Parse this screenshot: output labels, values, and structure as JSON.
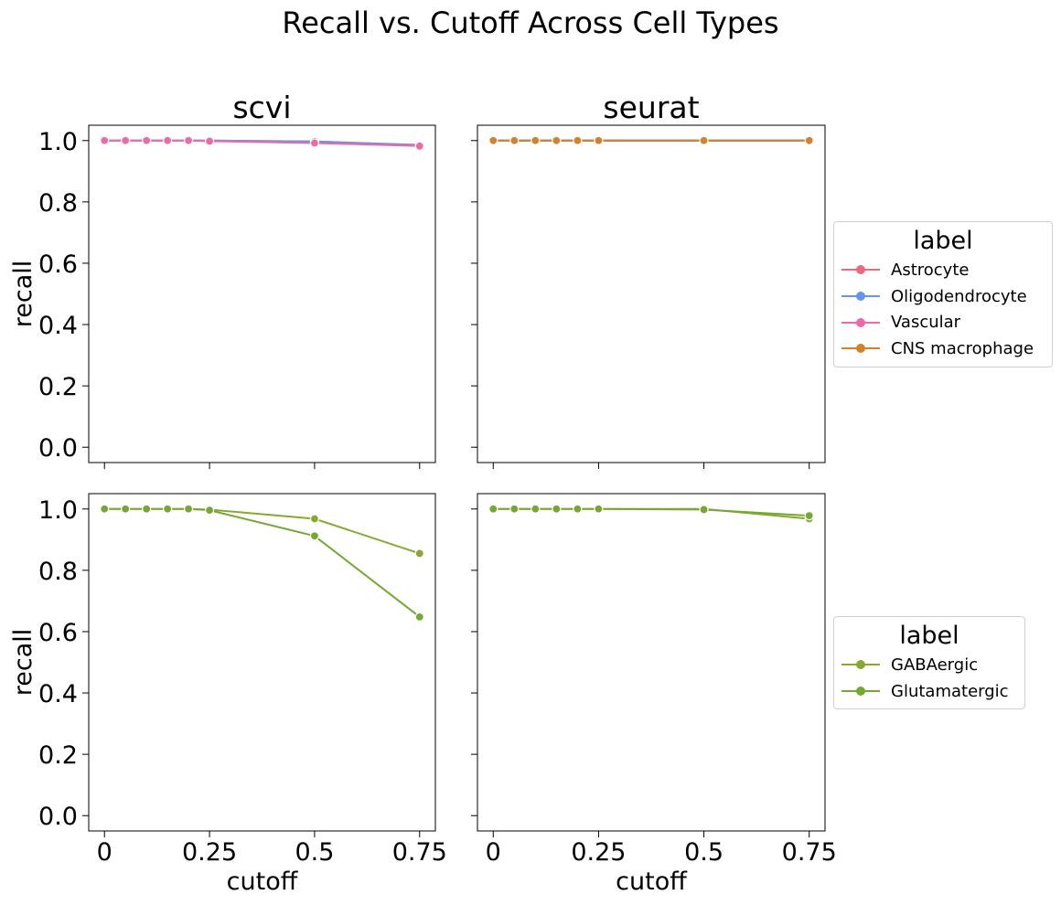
{
  "figure": {
    "title": "Recall vs. Cutoff Across Cell Types"
  },
  "chart_data": [
    {
      "type": "line",
      "title": "scvi",
      "xlabel": "",
      "ylabel": "recall",
      "xlim": [
        -0.0375,
        0.7875
      ],
      "ylim": [
        -0.05,
        1.05
      ],
      "xticks": [
        "0",
        "0.25",
        "0.5",
        "0.75"
      ],
      "yticks": [
        "0.0",
        "0.2",
        "0.4",
        "0.6",
        "0.8",
        "1.0"
      ],
      "x": [
        0,
        0.05,
        0.1,
        0.15,
        0.2,
        0.25,
        0.5,
        0.75
      ],
      "series": [
        {
          "name": "Astrocyte",
          "color": "#ee6680",
          "values": [
            1.0,
            1.0,
            1.0,
            1.0,
            1.0,
            1.0,
            0.997,
            0.986
          ]
        },
        {
          "name": "Oligodendrocyte",
          "color": "#6495ed",
          "values": [
            1.0,
            1.0,
            1.0,
            1.0,
            1.0,
            1.0,
            0.997,
            0.985
          ]
        },
        {
          "name": "Vascular",
          "color": "#ee6aa7",
          "values": [
            1.0,
            1.0,
            1.0,
            1.0,
            1.0,
            0.998,
            0.992,
            0.982
          ]
        }
      ]
    },
    {
      "type": "line",
      "title": "seurat",
      "xlabel": "",
      "ylabel": "",
      "xlim": [
        -0.0375,
        0.7875
      ],
      "ylim": [
        -0.05,
        1.05
      ],
      "xticks": [
        "0",
        "0.25",
        "0.5",
        "0.75"
      ],
      "yticks": [
        "0.0",
        "0.2",
        "0.4",
        "0.6",
        "0.8",
        "1.0"
      ],
      "x": [
        0,
        0.05,
        0.1,
        0.15,
        0.2,
        0.25,
        0.5,
        0.75
      ],
      "series": [
        {
          "name": "Astrocyte",
          "color": "#ee6680",
          "values": [
            1.0,
            1.0,
            1.0,
            1.0,
            1.0,
            1.0,
            1.0,
            1.0
          ]
        },
        {
          "name": "Oligodendrocyte",
          "color": "#6495ed",
          "values": [
            1.0,
            1.0,
            1.0,
            1.0,
            1.0,
            1.0,
            1.0,
            1.0
          ]
        },
        {
          "name": "Vascular",
          "color": "#ee6aa7",
          "values": [
            1.0,
            1.0,
            1.0,
            1.0,
            1.0,
            1.0,
            1.0,
            1.0
          ]
        },
        {
          "name": "CNS macrophage",
          "color": "#d2822d",
          "values": [
            1.0,
            1.0,
            1.0,
            1.0,
            1.0,
            1.0,
            1.0,
            1.0
          ]
        }
      ]
    },
    {
      "type": "line",
      "title": "",
      "xlabel": "cutoff",
      "ylabel": "recall",
      "xlim": [
        -0.0375,
        0.7875
      ],
      "ylim": [
        -0.05,
        1.05
      ],
      "xticks": [
        "0",
        "0.25",
        "0.5",
        "0.75"
      ],
      "yticks": [
        "0.0",
        "0.2",
        "0.4",
        "0.6",
        "0.8",
        "1.0"
      ],
      "x": [
        0,
        0.05,
        0.1,
        0.15,
        0.2,
        0.25,
        0.5,
        0.75
      ],
      "series": [
        {
          "name": "GABAergic",
          "color": "#88a832",
          "values": [
            1.0,
            1.0,
            1.0,
            1.0,
            1.0,
            0.998,
            0.968,
            0.855
          ]
        },
        {
          "name": "Glutamatergic",
          "color": "#74a832",
          "values": [
            1.0,
            1.0,
            1.0,
            1.0,
            1.0,
            0.996,
            0.912,
            0.648
          ]
        }
      ]
    },
    {
      "type": "line",
      "title": "",
      "xlabel": "cutoff",
      "ylabel": "",
      "xlim": [
        -0.0375,
        0.7875
      ],
      "ylim": [
        -0.05,
        1.05
      ],
      "xticks": [
        "0",
        "0.25",
        "0.5",
        "0.75"
      ],
      "yticks": [
        "0.0",
        "0.2",
        "0.4",
        "0.6",
        "0.8",
        "1.0"
      ],
      "x": [
        0,
        0.05,
        0.1,
        0.15,
        0.2,
        0.25,
        0.5,
        0.75
      ],
      "series": [
        {
          "name": "GABAergic",
          "color": "#88a832",
          "values": [
            1.0,
            1.0,
            1.0,
            1.0,
            1.0,
            1.0,
            1.0,
            0.968
          ]
        },
        {
          "name": "Glutamatergic",
          "color": "#74a832",
          "values": [
            1.0,
            1.0,
            1.0,
            1.0,
            1.0,
            1.0,
            0.998,
            0.978
          ]
        }
      ]
    }
  ],
  "legends": [
    {
      "title": "label",
      "items": [
        {
          "label": "Astrocyte",
          "color": "#ee6680"
        },
        {
          "label": "Oligodendrocyte",
          "color": "#6495ed"
        },
        {
          "label": "Vascular",
          "color": "#ee6aa7"
        },
        {
          "label": "CNS macrophage",
          "color": "#d2822d"
        }
      ]
    },
    {
      "title": "label",
      "items": [
        {
          "label": "GABAergic",
          "color": "#88a832"
        },
        {
          "label": "Glutamatergic",
          "color": "#74a832"
        }
      ]
    }
  ]
}
